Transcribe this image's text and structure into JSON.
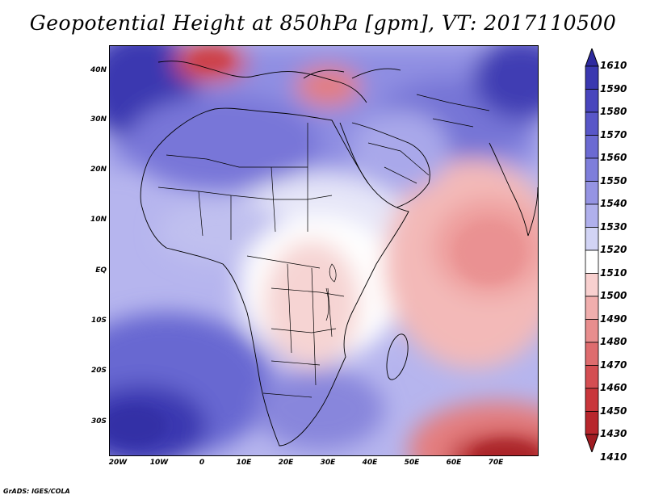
{
  "title": "Geopotential Height at 850hPa [gpm], VT: 2017110500",
  "footer": "GrADS: IGES/COLA",
  "lat_labels": [
    "40N",
    "30N",
    "20N",
    "10N",
    "EQ",
    "10S",
    "20S",
    "30S"
  ],
  "lon_labels": [
    "20W",
    "10W",
    "0",
    "10E",
    "20E",
    "30E",
    "40E",
    "50E",
    "60E",
    "70E"
  ],
  "colorbar": {
    "labels": [
      "1610",
      "1590",
      "1580",
      "1570",
      "1560",
      "1550",
      "1540",
      "1530",
      "1520",
      "1510",
      "1500",
      "1490",
      "1480",
      "1470",
      "1460",
      "1450",
      "1430",
      "1410"
    ],
    "colors": [
      "#2e2a9f",
      "#3a38b0",
      "#4845bd",
      "#5856c8",
      "#6b6ad2",
      "#7e7edb",
      "#9594e3",
      "#b0b0ec",
      "#d2d4f5",
      "#ffffff",
      "#f8d0cf",
      "#f0aead",
      "#e88e8e",
      "#de6c6e",
      "#d44e52",
      "#c9363b",
      "#b8262c",
      "#a01c22"
    ]
  }
}
